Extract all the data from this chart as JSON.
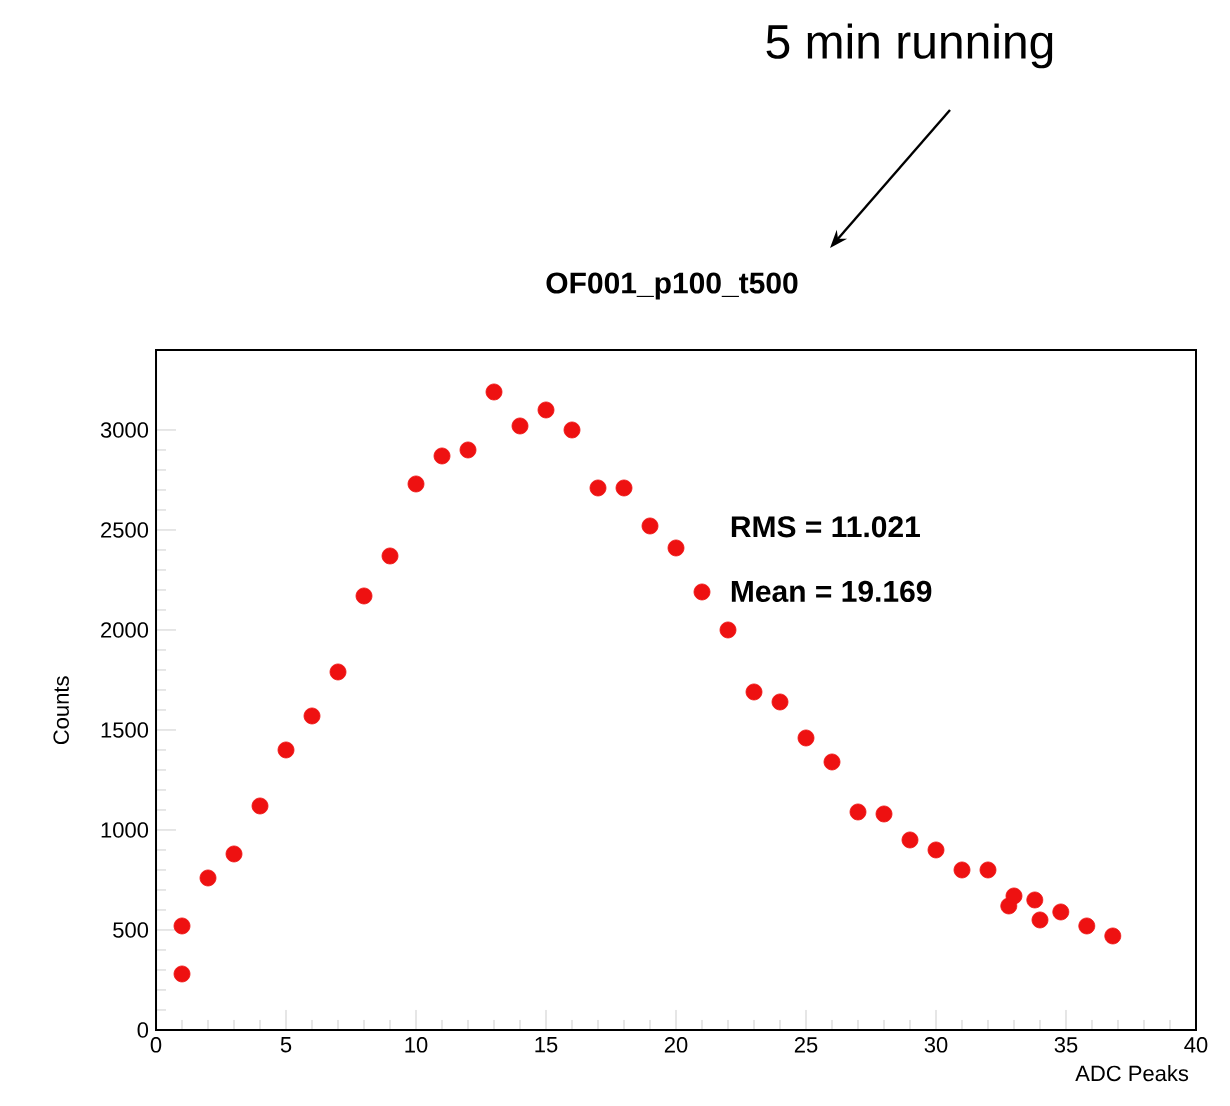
{
  "chart_data": {
    "type": "scatter",
    "title": "OF001_p100_t500",
    "xlabel": "ADC Peaks",
    "ylabel": "Counts",
    "x": [
      1,
      1,
      2,
      3,
      4,
      5,
      6,
      7,
      8,
      9,
      10,
      11,
      12,
      13,
      14,
      15,
      16,
      17,
      18,
      19,
      20,
      21,
      22,
      23,
      24,
      25,
      26,
      27,
      28,
      29,
      30,
      31,
      32,
      32.8,
      33,
      33.8,
      34,
      34.8,
      35.8,
      36.8
    ],
    "values": [
      520,
      280,
      760,
      880,
      1120,
      1400,
      1570,
      1790,
      2170,
      2370,
      2730,
      2870,
      2900,
      3190,
      3020,
      3100,
      3000,
      2710,
      2710,
      2520,
      2410,
      2190,
      2000,
      1690,
      1640,
      1460,
      1340,
      1090,
      1080,
      950,
      900,
      800,
      800,
      620,
      670,
      650,
      550,
      590,
      520,
      470
    ],
    "color": "#ee1111",
    "marker": "circle",
    "xlim": [
      0,
      40
    ],
    "ylim": [
      0,
      3400
    ],
    "xticks": [
      0,
      5,
      10,
      15,
      20,
      25,
      30,
      35,
      40
    ],
    "yticks": [
      0,
      500,
      1000,
      1500,
      2000,
      2500,
      3000
    ],
    "annotations": [
      "RMS = 11.021",
      "Mean = 19.169",
      "5 min running"
    ]
  }
}
